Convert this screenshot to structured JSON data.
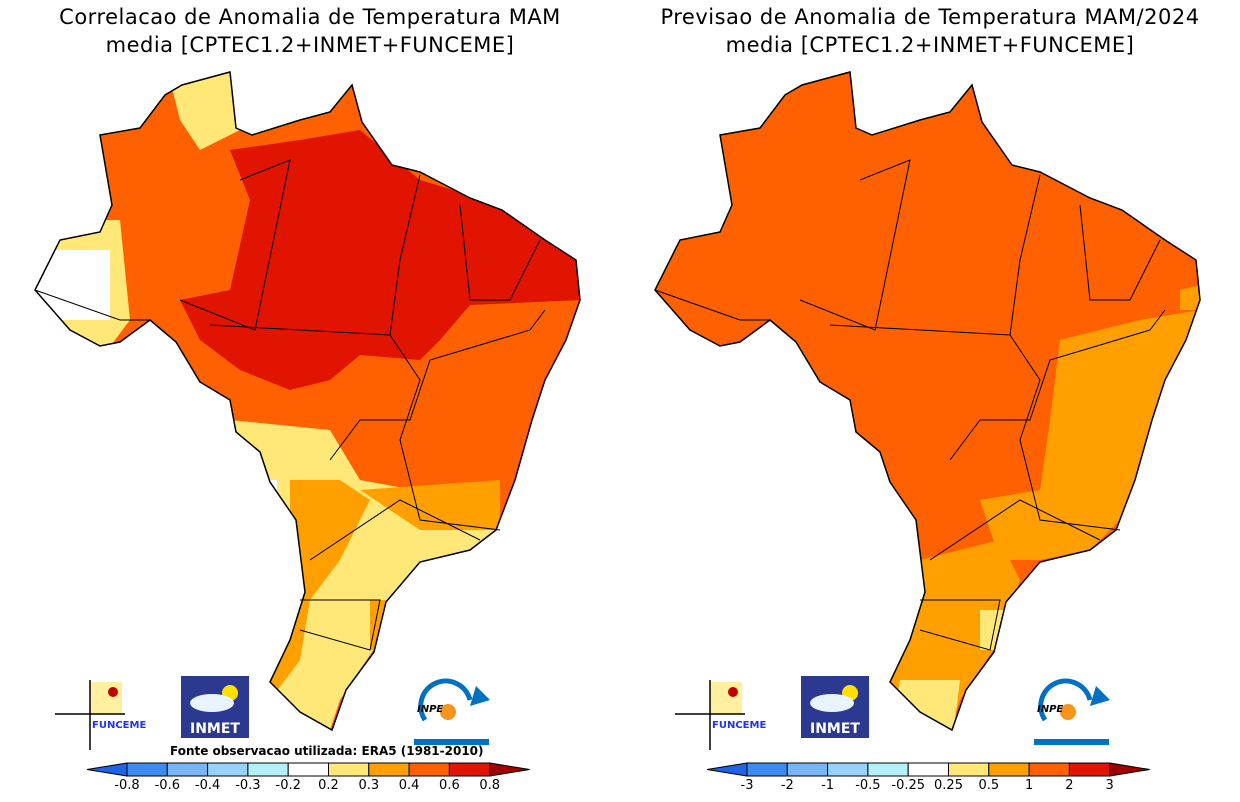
{
  "panels": [
    {
      "title_line1": "Correlacao de Anomalia de Temperatura MAM",
      "title_line2": "media [CPTEC1.2+INMET+FUNCEME]",
      "source_note": "Fonte observacao utilizada: ERA5 (1981-2010)",
      "colorbar": {
        "labels": [
          "-0.8",
          "-0.6",
          "-0.4",
          "-0.3",
          "-0.2",
          "0.2",
          "0.3",
          "0.4",
          "0.6",
          "0.8"
        ],
        "colors": [
          "#1e64e6",
          "#3c8cf0",
          "#78b4f8",
          "#96d2fa",
          "#b4f0fa",
          "#ffffff",
          "#ffe878",
          "#ffa000",
          "#ff6000",
          "#e01400",
          "#a00000"
        ]
      }
    },
    {
      "title_line1": "Previsao de Anomalia de Temperatura MAM/2024",
      "title_line2": "media [CPTEC1.2+INMET+FUNCEME]",
      "colorbar": {
        "labels": [
          "-3",
          "-2",
          "-1",
          "-0.5",
          "-0.25",
          "0.25",
          "0.5",
          "1",
          "2",
          "3"
        ],
        "colors": [
          "#1e64e6",
          "#3c8cf0",
          "#78b4f8",
          "#96d2fa",
          "#b4f0fa",
          "#ffffff",
          "#ffe878",
          "#ffa000",
          "#ff6000",
          "#e01400",
          "#a00000"
        ]
      }
    }
  ],
  "logos": {
    "funceme": "FUNCEME",
    "inmet": "INMET",
    "inpe": "INPE"
  }
}
